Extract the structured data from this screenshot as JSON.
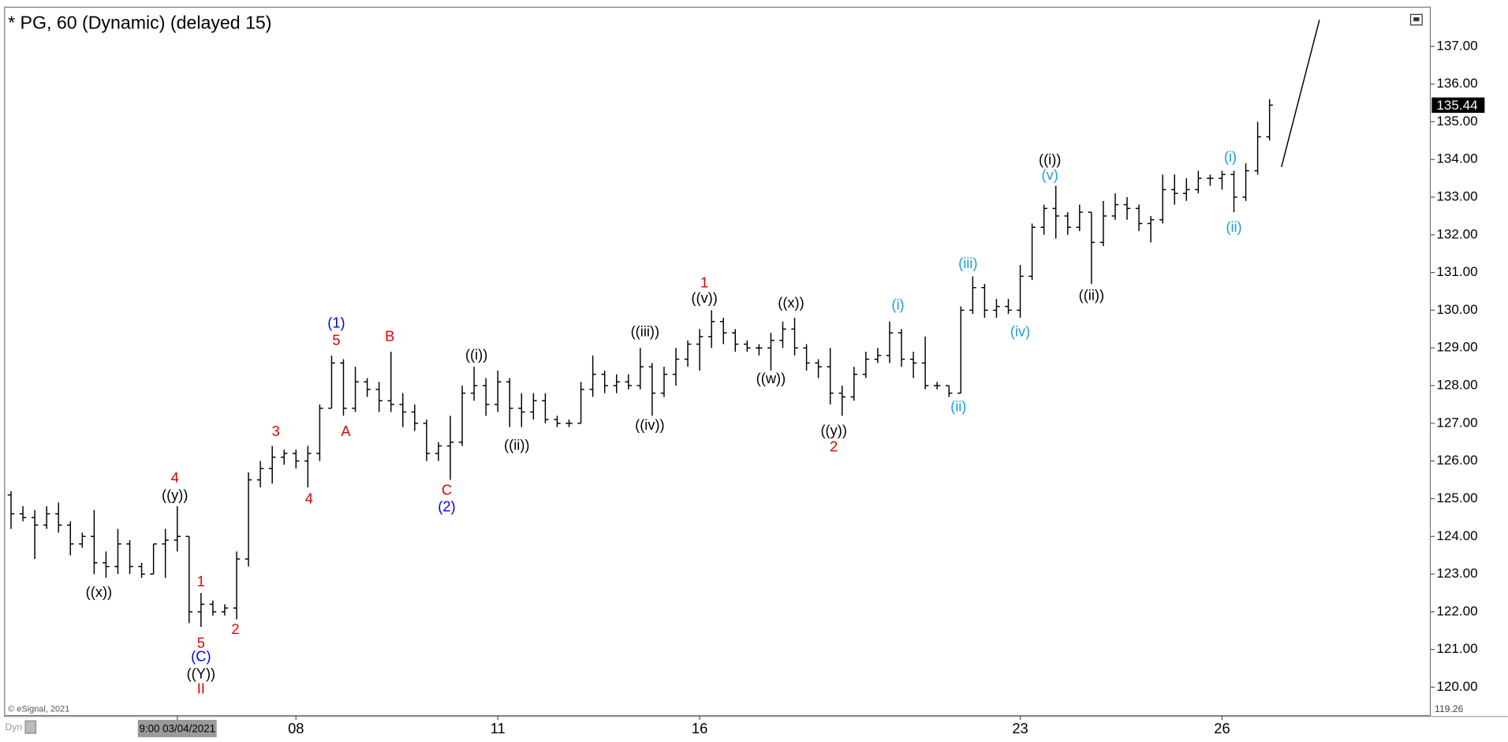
{
  "chart_data": {
    "type": "ohlc",
    "title": "* PG, 60 (Dynamic) (delayed 15)",
    "credit": "© eSignal, 2021",
    "mode_label": "Dyn",
    "categories": [
      null,
      null,
      null,
      null,
      null,
      null,
      null,
      null,
      null,
      null,
      null,
      null,
      null,
      null,
      "9:00 03/04/2021",
      null,
      null,
      null,
      null,
      null,
      null,
      null,
      null,
      null,
      "08",
      null,
      null,
      null,
      null,
      null,
      null,
      null,
      null,
      null,
      null,
      null,
      null,
      null,
      null,
      null,
      null,
      "11",
      null,
      null,
      null,
      null,
      null,
      null,
      null,
      null,
      null,
      null,
      null,
      null,
      null,
      null,
      null,
      null,
      "16",
      null,
      null,
      null,
      null,
      null,
      null,
      null,
      null,
      null,
      null,
      null,
      null,
      null,
      null,
      null,
      null,
      null,
      null,
      null,
      null,
      null,
      null,
      null,
      null,
      null,
      null,
      "23",
      null,
      null,
      null,
      null,
      null,
      null,
      null,
      null,
      null,
      null,
      null,
      null,
      null,
      null,
      null,
      null,
      "26",
      null,
      null,
      null,
      null
    ],
    "ohlc": [
      [
        125.1,
        125.2,
        124.2,
        124.6
      ],
      [
        124.6,
        124.8,
        124.4,
        124.5
      ],
      [
        124.5,
        124.7,
        123.4,
        124.3
      ],
      [
        124.3,
        124.8,
        124.2,
        124.6
      ],
      [
        124.6,
        124.9,
        124.1,
        124.3
      ],
      [
        124.3,
        124.4,
        123.5,
        123.8
      ],
      [
        123.8,
        124.1,
        123.7,
        124.0
      ],
      [
        124.0,
        124.7,
        123.0,
        123.3
      ],
      [
        123.3,
        123.6,
        122.9,
        123.2
      ],
      [
        123.2,
        124.2,
        123.0,
        123.8
      ],
      [
        123.8,
        123.9,
        123.0,
        123.2
      ],
      [
        123.2,
        123.3,
        122.9,
        123.0
      ],
      [
        123.0,
        123.8,
        123.0,
        123.8
      ],
      [
        123.8,
        124.2,
        122.9,
        123.9
      ],
      [
        123.9,
        124.8,
        123.6,
        124.0
      ],
      [
        124.0,
        124.0,
        121.7,
        122.0
      ],
      [
        122.0,
        122.5,
        121.6,
        122.2
      ],
      [
        122.2,
        122.3,
        121.9,
        122.0
      ],
      [
        122.0,
        122.2,
        121.9,
        122.1
      ],
      [
        122.1,
        123.6,
        121.8,
        123.4
      ],
      [
        123.4,
        125.7,
        123.2,
        125.5
      ],
      [
        125.5,
        126.0,
        125.3,
        125.8
      ],
      [
        125.8,
        126.4,
        125.4,
        126.1
      ],
      [
        126.1,
        126.3,
        125.9,
        126.2
      ],
      [
        126.2,
        126.3,
        125.8,
        126.0
      ],
      [
        126.0,
        126.4,
        125.3,
        126.2
      ],
      [
        126.2,
        127.5,
        126.0,
        127.4
      ],
      [
        127.4,
        128.8,
        127.4,
        128.6
      ],
      [
        128.6,
        128.7,
        127.2,
        127.4
      ],
      [
        127.4,
        128.5,
        127.3,
        128.1
      ],
      [
        128.1,
        128.2,
        127.7,
        127.9
      ],
      [
        127.9,
        128.1,
        127.3,
        127.6
      ],
      [
        127.6,
        128.9,
        127.3,
        127.5
      ],
      [
        127.5,
        127.8,
        126.9,
        127.3
      ],
      [
        127.3,
        127.5,
        126.8,
        127.0
      ],
      [
        127.0,
        127.1,
        126.0,
        126.2
      ],
      [
        126.2,
        126.5,
        126.0,
        126.4
      ],
      [
        126.4,
        127.2,
        125.5,
        126.5
      ],
      [
        126.5,
        128.0,
        126.4,
        127.8
      ],
      [
        127.8,
        128.5,
        127.6,
        128.0
      ],
      [
        128.0,
        128.2,
        127.2,
        127.5
      ],
      [
        127.5,
        128.4,
        127.3,
        128.1
      ],
      [
        128.1,
        128.2,
        126.9,
        127.4
      ],
      [
        127.4,
        127.8,
        126.9,
        127.3
      ],
      [
        127.3,
        127.8,
        127.1,
        127.6
      ],
      [
        127.6,
        127.8,
        127.0,
        127.1
      ],
      [
        127.1,
        127.2,
        126.9,
        127.0
      ],
      [
        127.0,
        127.1,
        126.9,
        127.0
      ],
      [
        127.0,
        128.1,
        127.0,
        127.9
      ],
      [
        127.9,
        128.8,
        127.7,
        128.3
      ],
      [
        128.3,
        128.4,
        127.8,
        128.0
      ],
      [
        128.0,
        128.3,
        127.8,
        128.1
      ],
      [
        128.1,
        128.3,
        127.9,
        128.0
      ],
      [
        128.0,
        129.0,
        127.9,
        128.5
      ],
      [
        128.5,
        128.6,
        127.2,
        127.8
      ],
      [
        127.8,
        128.5,
        127.7,
        128.3
      ],
      [
        128.3,
        129.0,
        128.0,
        128.7
      ],
      [
        128.7,
        129.2,
        128.5,
        129.1
      ],
      [
        129.1,
        129.5,
        128.4,
        129.3
      ],
      [
        129.3,
        130.0,
        129.0,
        129.7
      ],
      [
        129.7,
        129.8,
        129.1,
        129.4
      ],
      [
        129.4,
        129.5,
        128.9,
        129.1
      ],
      [
        129.1,
        129.2,
        128.9,
        129.0
      ],
      [
        129.0,
        129.1,
        128.8,
        129.0
      ],
      [
        129.0,
        129.4,
        128.4,
        129.2
      ],
      [
        129.2,
        129.7,
        129.0,
        129.5
      ],
      [
        129.5,
        129.8,
        128.8,
        129.0
      ],
      [
        129.0,
        129.1,
        128.4,
        128.6
      ],
      [
        128.6,
        128.7,
        128.2,
        128.5
      ],
      [
        128.5,
        129.0,
        127.5,
        127.8
      ],
      [
        127.8,
        128.0,
        127.2,
        127.7
      ],
      [
        127.7,
        128.5,
        127.6,
        128.3
      ],
      [
        128.3,
        128.9,
        128.2,
        128.7
      ],
      [
        128.7,
        129.0,
        128.6,
        128.8
      ],
      [
        128.8,
        129.7,
        128.6,
        129.4
      ],
      [
        129.4,
        129.5,
        128.5,
        128.7
      ],
      [
        128.7,
        128.9,
        128.2,
        128.6
      ],
      [
        128.6,
        129.3,
        127.9,
        128.0
      ],
      [
        128.0,
        128.1,
        127.9,
        128.0
      ],
      [
        128.0,
        128.0,
        127.7,
        127.8
      ],
      [
        127.8,
        130.1,
        127.8,
        130.0
      ],
      [
        130.0,
        130.9,
        129.9,
        130.6
      ],
      [
        130.6,
        130.7,
        129.8,
        130.0
      ],
      [
        130.0,
        130.3,
        129.8,
        130.1
      ],
      [
        130.1,
        130.3,
        129.9,
        130.0
      ],
      [
        130.0,
        131.2,
        129.8,
        130.9
      ],
      [
        130.9,
        132.3,
        130.8,
        132.2
      ],
      [
        132.2,
        132.8,
        132.0,
        132.7
      ],
      [
        132.7,
        133.3,
        131.9,
        132.5
      ],
      [
        132.5,
        132.6,
        132.0,
        132.2
      ],
      [
        132.2,
        132.8,
        132.1,
        132.6
      ],
      [
        132.6,
        132.6,
        130.7,
        131.8
      ],
      [
        131.8,
        132.9,
        131.7,
        132.5
      ],
      [
        132.5,
        133.1,
        132.4,
        132.8
      ],
      [
        132.8,
        133.0,
        132.4,
        132.7
      ],
      [
        132.7,
        132.8,
        132.1,
        132.3
      ],
      [
        132.3,
        132.5,
        131.8,
        132.4
      ],
      [
        132.4,
        133.6,
        132.3,
        133.2
      ],
      [
        133.2,
        133.6,
        132.8,
        133.1
      ],
      [
        133.1,
        133.5,
        132.9,
        133.2
      ],
      [
        133.2,
        133.7,
        133.1,
        133.5
      ],
      [
        133.5,
        133.6,
        133.3,
        133.5
      ],
      [
        133.5,
        133.7,
        133.2,
        133.6
      ],
      [
        133.6,
        133.7,
        132.6,
        133.0
      ],
      [
        133.0,
        133.9,
        132.9,
        133.7
      ],
      [
        133.7,
        135.0,
        133.6,
        134.6
      ],
      [
        134.6,
        135.6,
        134.5,
        135.44
      ]
    ],
    "color": "#000000",
    "ylim": [
      119.26,
      138.0
    ],
    "yticks": [
      {
        "value": 120,
        "label": "120.00"
      },
      {
        "value": 121,
        "label": "121.00"
      },
      {
        "value": 122,
        "label": "122.00"
      },
      {
        "value": 123,
        "label": "123.00"
      },
      {
        "value": 124,
        "label": "124.00"
      },
      {
        "value": 125,
        "label": "125.00"
      },
      {
        "value": 126,
        "label": "126.00"
      },
      {
        "value": 127,
        "label": "127.00"
      },
      {
        "value": 128,
        "label": "128.00"
      },
      {
        "value": 129,
        "label": "129.00"
      },
      {
        "value": 130,
        "label": "130.00"
      },
      {
        "value": 131,
        "label": "131.00"
      },
      {
        "value": 132,
        "label": "132.00"
      },
      {
        "value": 133,
        "label": "133.00"
      },
      {
        "value": 134,
        "label": "134.00"
      },
      {
        "value": 135,
        "label": "135.00"
      },
      {
        "value": 136,
        "label": "136.00"
      },
      {
        "value": 137,
        "label": "137.00"
      }
    ],
    "projection": {
      "x": [
        107,
        110.2
      ],
      "y": [
        133.8,
        137.7
      ]
    },
    "annotations": [
      {
        "text": "((x))",
        "color": "#000000",
        "x": 7.4,
        "y": 122.5
      },
      {
        "text": "4",
        "color": "#e00000",
        "x": 13.8,
        "y": 125.53
      },
      {
        "text": "((y))",
        "color": "#000000",
        "x": 13.8,
        "y": 125.07
      },
      {
        "text": "1",
        "color": "#e00000",
        "x": 16.0,
        "y": 122.78
      },
      {
        "text": "5",
        "color": "#e00000",
        "x": 16.0,
        "y": 121.15
      },
      {
        "text": "(C)",
        "color": "#0000ee",
        "x": 16.0,
        "y": 120.79
      },
      {
        "text": "((Y))",
        "color": "#000000",
        "x": 16.0,
        "y": 120.33
      },
      {
        "text": "II",
        "color": "#e00000",
        "x": 16.0,
        "y": 119.93
      },
      {
        "text": "2",
        "color": "#e00000",
        "x": 18.9,
        "y": 121.51
      },
      {
        "text": "3",
        "color": "#e00000",
        "x": 22.3,
        "y": 126.76
      },
      {
        "text": "4",
        "color": "#e00000",
        "x": 25.1,
        "y": 124.97
      },
      {
        "text": "(1)",
        "color": "#0000ee",
        "x": 27.4,
        "y": 129.64
      },
      {
        "text": "5",
        "color": "#e00000",
        "x": 27.4,
        "y": 129.18
      },
      {
        "text": "A",
        "color": "#e00000",
        "x": 28.2,
        "y": 126.76
      },
      {
        "text": "B",
        "color": "#e00000",
        "x": 31.9,
        "y": 129.28
      },
      {
        "text": "C",
        "color": "#e00000",
        "x": 36.7,
        "y": 125.2
      },
      {
        "text": "(2)",
        "color": "#0000ee",
        "x": 36.7,
        "y": 124.77
      },
      {
        "text": "((i))",
        "color": "#000000",
        "x": 39.2,
        "y": 128.79
      },
      {
        "text": "((ii))",
        "color": "#000000",
        "x": 42.6,
        "y": 126.4
      },
      {
        "text": "((iii))",
        "color": "#000000",
        "x": 53.4,
        "y": 129.41
      },
      {
        "text": "((iv))",
        "color": "#000000",
        "x": 53.8,
        "y": 126.93
      },
      {
        "text": "1",
        "color": "#e00000",
        "x": 58.4,
        "y": 130.71
      },
      {
        "text": "((v))",
        "color": "#000000",
        "x": 58.4,
        "y": 130.3
      },
      {
        "text": "((x))",
        "color": "#000000",
        "x": 65.7,
        "y": 130.17
      },
      {
        "text": "((w))",
        "color": "#000000",
        "x": 64.0,
        "y": 128.16
      },
      {
        "text": "((y))",
        "color": "#000000",
        "x": 69.3,
        "y": 126.78
      },
      {
        "text": "2",
        "color": "#e00000",
        "x": 69.3,
        "y": 126.35
      },
      {
        "text": "(i)",
        "color": "#1a9ee0",
        "x": 74.7,
        "y": 130.12
      },
      {
        "text": "(ii)",
        "color": "#1a9ee0",
        "x": 79.8,
        "y": 127.42
      },
      {
        "text": "(iii)",
        "color": "#1a9ee0",
        "x": 80.6,
        "y": 131.22
      },
      {
        "text": "(iv)",
        "color": "#1a9ee0",
        "x": 85.0,
        "y": 129.41
      },
      {
        "text": "((i))",
        "color": "#000000",
        "x": 87.5,
        "y": 133.97
      },
      {
        "text": "(v)",
        "color": "#1a9ee0",
        "x": 87.5,
        "y": 133.56
      },
      {
        "text": "((ii))",
        "color": "#000000",
        "x": 91.0,
        "y": 130.37
      },
      {
        "text": "(i)",
        "color": "#1a9ee0",
        "x": 102.7,
        "y": 134.04
      },
      {
        "text": "(ii)",
        "color": "#1a9ee0",
        "x": 103.0,
        "y": 132.18
      }
    ]
  }
}
